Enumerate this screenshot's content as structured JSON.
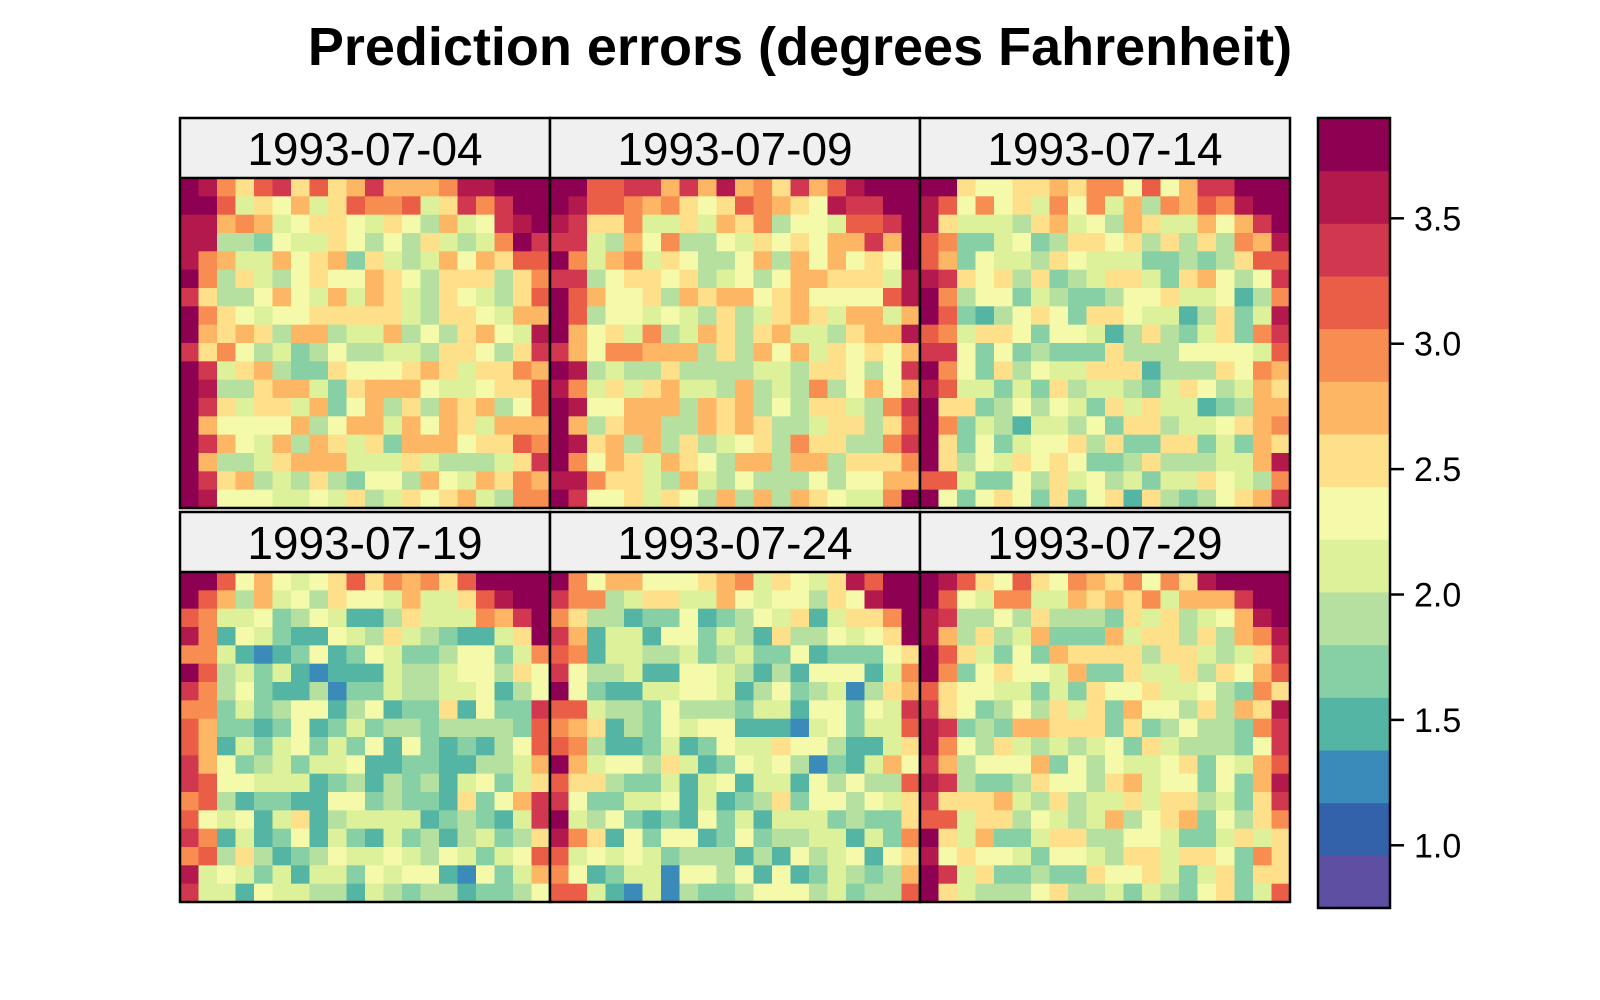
{
  "chart_data": {
    "type": "heatmap",
    "title": "Prediction errors (degrees Fahrenheit)",
    "layout": "2 rows x 3 columns of panels, colorbar at right",
    "panels": [
      {
        "label": "1993-07-04",
        "corner_offset": 0.15,
        "noise_shift": 0.15,
        "seed": 11
      },
      {
        "label": "1993-07-09",
        "corner_offset": 0.2,
        "noise_shift": 0.2,
        "seed": 23
      },
      {
        "label": "1993-07-14",
        "corner_offset": 0.05,
        "noise_shift": -0.05,
        "seed": 37
      },
      {
        "label": "1993-07-19",
        "corner_offset": -0.1,
        "noise_shift": -0.25,
        "seed": 41
      },
      {
        "label": "1993-07-24",
        "corner_offset": -0.1,
        "noise_shift": -0.25,
        "seed": 53
      },
      {
        "label": "1993-07-29",
        "corner_offset": 0.05,
        "noise_shift": 0.0,
        "seed": 67
      }
    ],
    "grid": {
      "cols": 20,
      "rows": 18
    },
    "colorbar": {
      "range": [
        0.75,
        3.9
      ],
      "ticks": [
        1.0,
        1.5,
        2.0,
        2.5,
        3.0,
        3.5
      ],
      "tick_labels": [
        "1.0",
        "1.5",
        "2.0",
        "2.5",
        "3.0",
        "3.5"
      ],
      "palette": [
        "#5E4FA2",
        "#3362AA",
        "#3A8BB9",
        "#55B5A5",
        "#87CFA4",
        "#B5E0A0",
        "#DDF19A",
        "#F4FAAA",
        "#FEE08B",
        "#FDB764",
        "#F88D52",
        "#EA5E47",
        "#D1384F",
        "#B3194C",
        "#8E0152"
      ]
    }
  }
}
